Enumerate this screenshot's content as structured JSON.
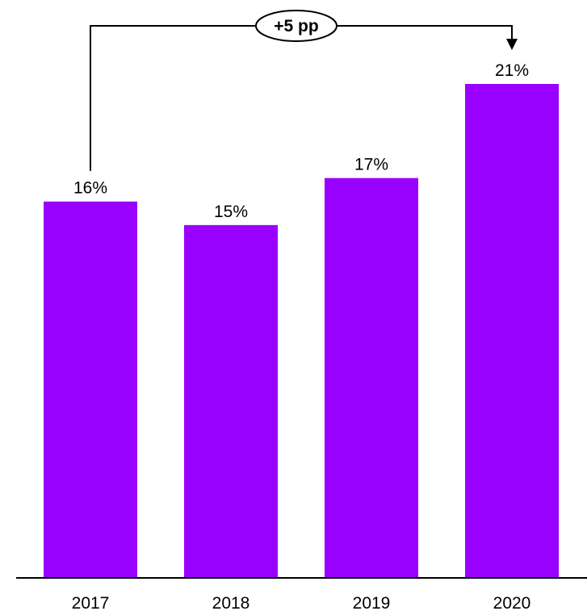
{
  "chart_data": {
    "type": "bar",
    "title": "",
    "xlabel": "",
    "ylabel": "",
    "categories": [
      "2017",
      "2018",
      "2019",
      "2020"
    ],
    "values": [
      16,
      15,
      17,
      21
    ],
    "data_labels": [
      "16%",
      "15%",
      "17%",
      "21%"
    ],
    "value_unit": "%",
    "ylim": [
      0,
      21
    ],
    "grid": false,
    "legend": "none",
    "bar_color": "#9900FF",
    "annotation": {
      "text": "+5 pp",
      "from_category": "2017",
      "to_category": "2020"
    }
  }
}
